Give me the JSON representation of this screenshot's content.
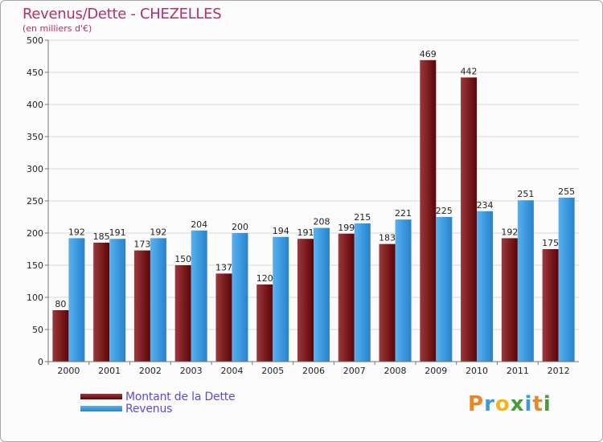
{
  "title": "Revenus/Dette - CHEZELLES",
  "subtitle": "(en milliers d'€)",
  "chart_data": {
    "type": "bar",
    "title": "Revenus/Dette - CHEZELLES",
    "ylabel": "(en milliers d'€)",
    "ylim": [
      0,
      500
    ],
    "yticks": [
      0,
      50,
      100,
      150,
      200,
      250,
      300,
      350,
      400,
      450,
      500
    ],
    "grid": true,
    "legend": "bottom-left",
    "categories": [
      "2000",
      "2001",
      "2002",
      "2003",
      "2004",
      "2005",
      "2006",
      "2007",
      "2008",
      "2009",
      "2010",
      "2011",
      "2012"
    ],
    "series": [
      {
        "name": "Montant de la Dette",
        "color": "#7a0f12",
        "values": [
          80,
          185,
          173,
          150,
          137,
          120,
          191,
          199,
          183,
          469,
          442,
          192,
          175
        ]
      },
      {
        "name": "Revenus",
        "color": "#3d9ae0",
        "values": [
          192,
          191,
          192,
          204,
          200,
          194,
          208,
          215,
          221,
          225,
          234,
          251,
          255
        ]
      }
    ]
  },
  "logo": {
    "letters": [
      "P",
      "r",
      "o",
      "x",
      "i",
      "t",
      "i"
    ],
    "colors": [
      "#e8862a",
      "#3a9bd8",
      "#f2b51c",
      "#4a9a3a",
      "#3a9bd8",
      "#e8862a",
      "#4a9a3a"
    ]
  }
}
